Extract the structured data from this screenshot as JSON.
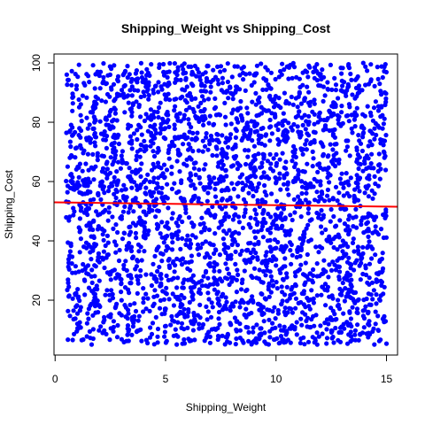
{
  "chart_data": {
    "type": "scatter",
    "title": "Shipping_Weight vs Shipping_Cost",
    "xlabel": "Shipping_Weight",
    "ylabel": "Shipping_Cost",
    "xlim": [
      -0.05,
      15.5
    ],
    "ylim": [
      1.5,
      103
    ],
    "xticks": [
      0,
      5,
      10,
      15
    ],
    "yticks": [
      20,
      40,
      60,
      80,
      100
    ],
    "grid": false,
    "legend": "none",
    "point_color": "#0000ff",
    "line_color": "#ff0000",
    "point_count": 3000,
    "x_range": [
      0.5,
      15
    ],
    "y_range": [
      5,
      100
    ],
    "regression_line": {
      "x": [
        -0.05,
        15.5
      ],
      "y": [
        53.0,
        51.5
      ]
    }
  }
}
